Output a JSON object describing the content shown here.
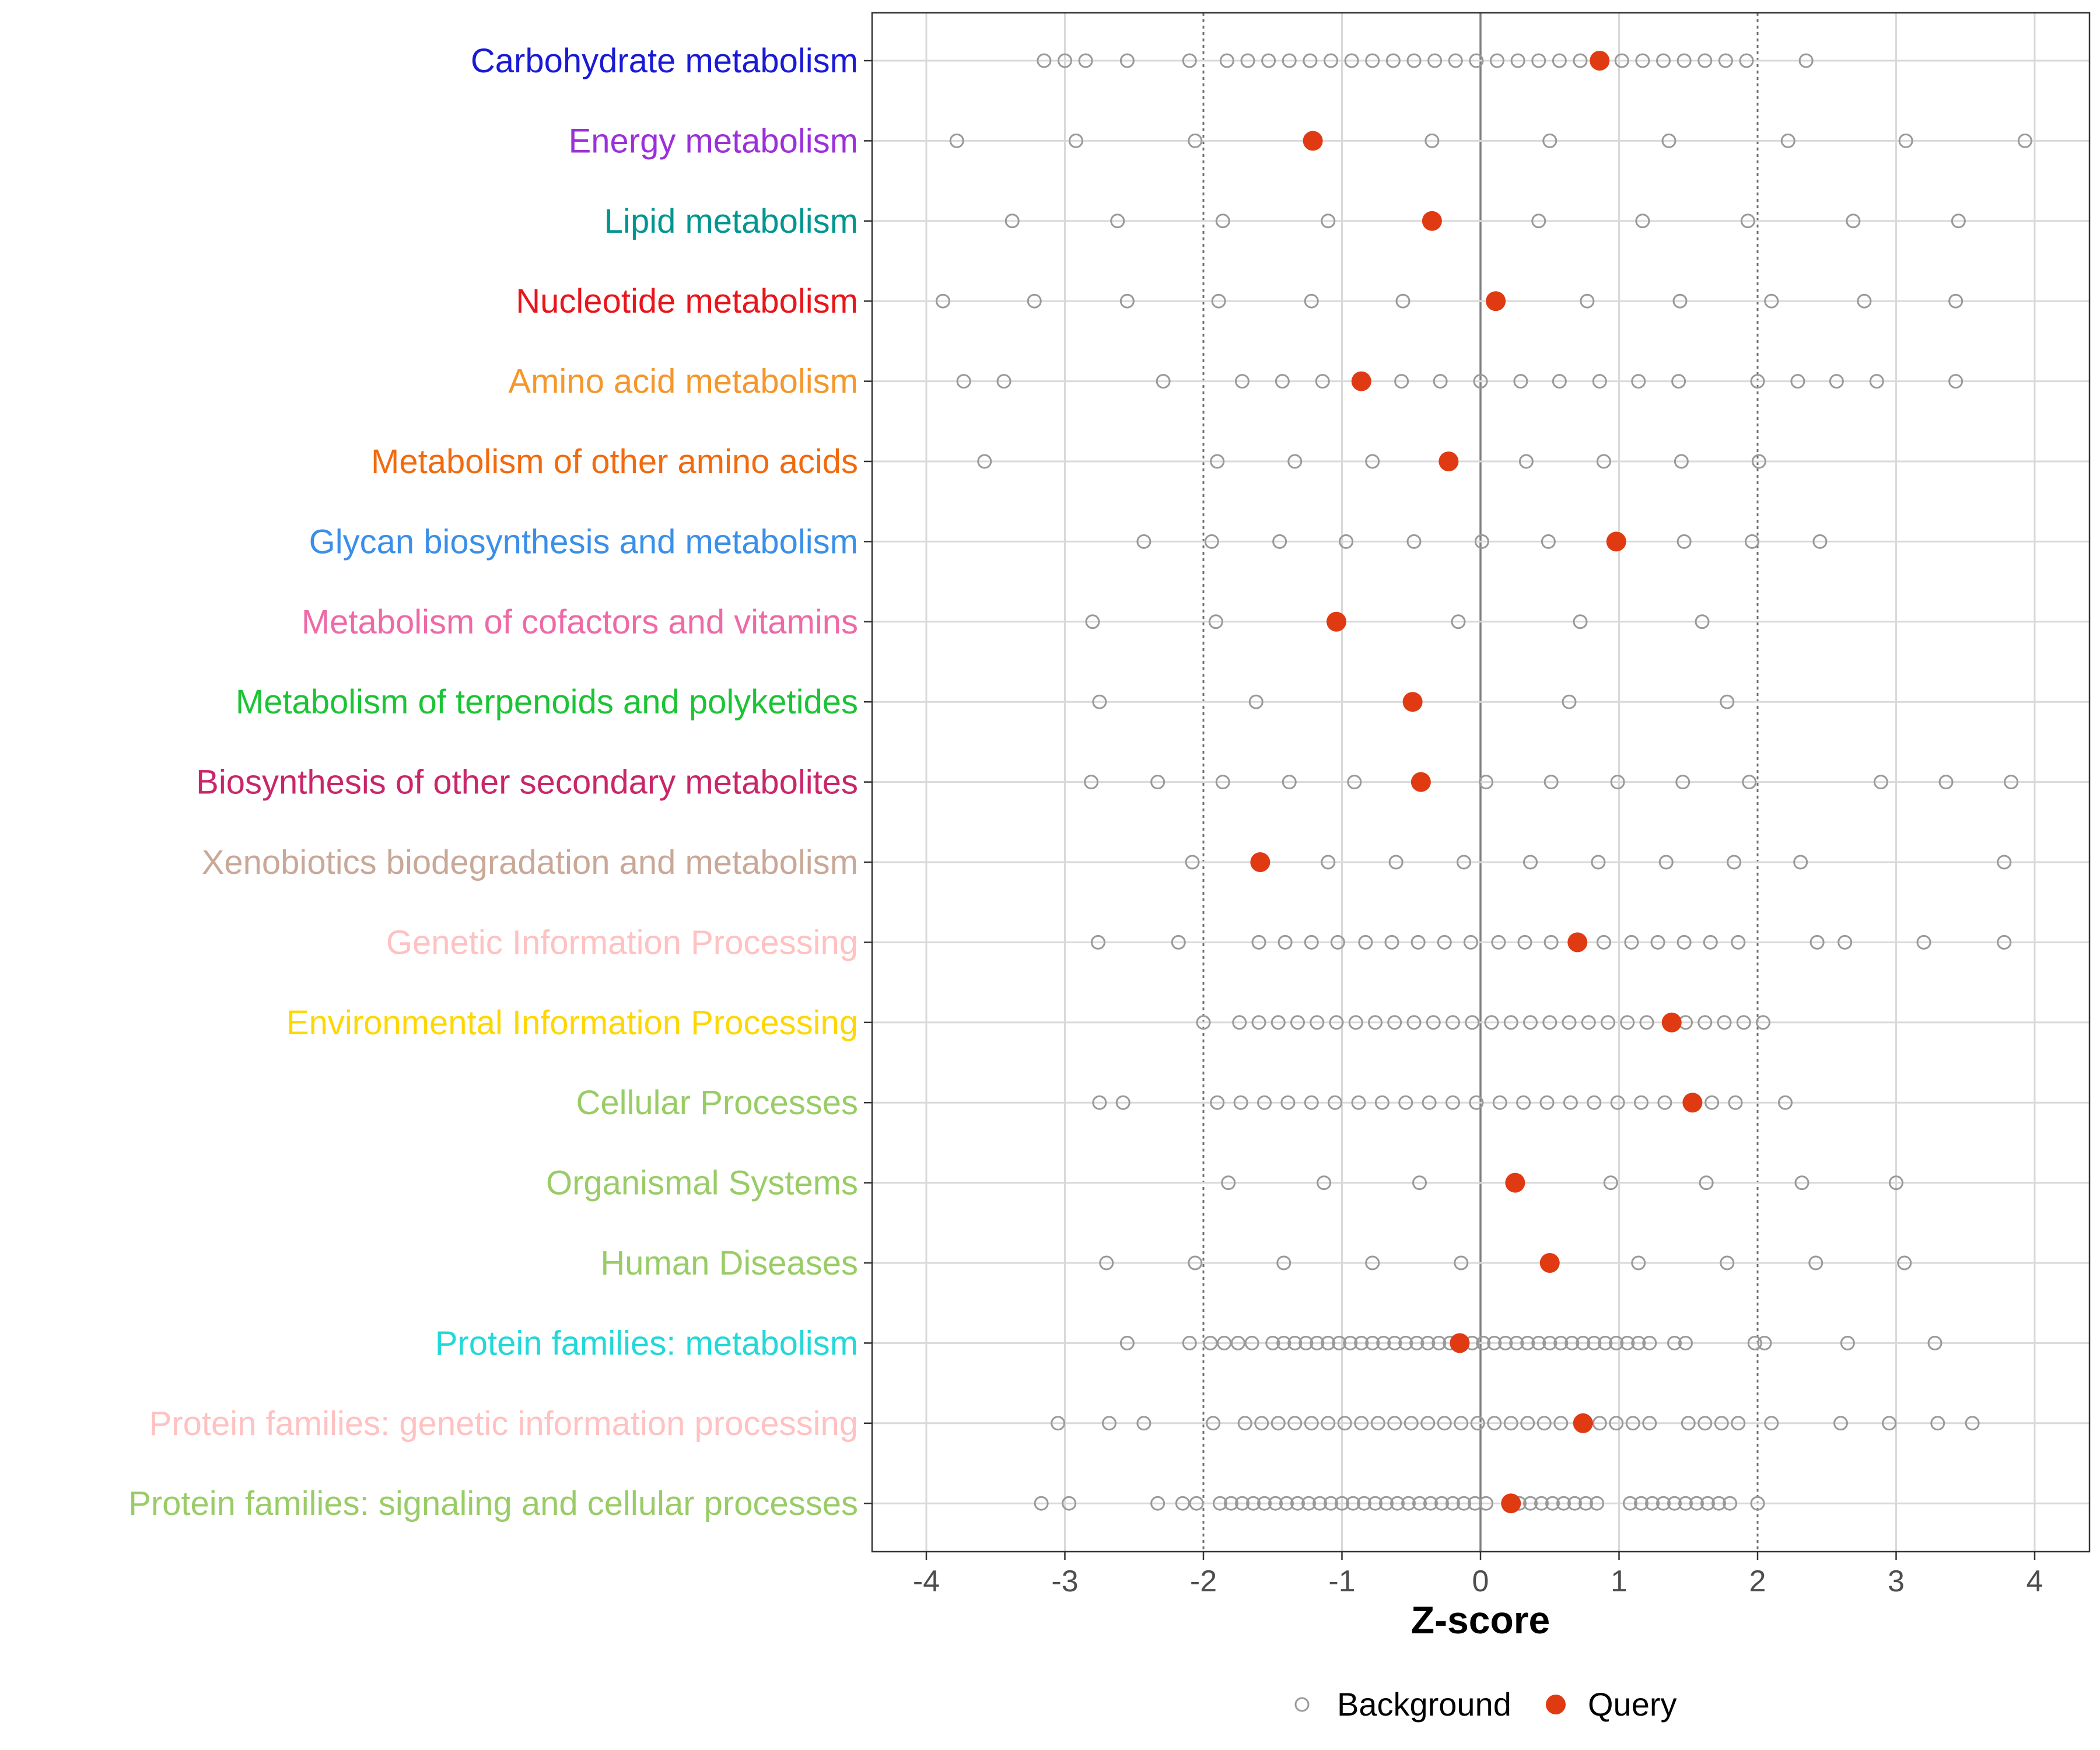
{
  "chart_data": {
    "type": "scatter",
    "xlabel": "Z-score",
    "xlim": [
      -4.4,
      4.4
    ],
    "xticks": [
      -4,
      -3,
      -2,
      -1,
      0,
      1,
      2,
      3,
      4
    ],
    "reference_lines": {
      "solid": [
        0
      ],
      "dotted": [
        -2,
        2
      ]
    },
    "legend": {
      "position": "bottom",
      "items": [
        {
          "name": "Background",
          "style": "open-circle"
        },
        {
          "name": "Query",
          "style": "filled-circle"
        }
      ]
    },
    "colors": {
      "background": "#999999",
      "query": "#E03A12",
      "grid": "#d9d9d9",
      "zero_line": "#808080",
      "dotted_line": "#707070"
    },
    "categories": [
      {
        "name": "Carbohydrate metabolism",
        "color": "#1A1AD6",
        "background": [
          -3.15,
          -3.0,
          -2.85,
          -2.55,
          -2.1,
          -1.83,
          -1.68,
          -1.53,
          -1.38,
          -1.23,
          -1.08,
          -0.93,
          -0.78,
          -0.63,
          -0.48,
          -0.33,
          -0.18,
          -0.03,
          0.12,
          0.27,
          0.42,
          0.57,
          0.72,
          1.02,
          1.17,
          1.32,
          1.47,
          1.62,
          1.77,
          1.92,
          2.35
        ],
        "query": 0.86
      },
      {
        "name": "Energy metabolism",
        "color": "#9B30D9",
        "background": [
          -3.78,
          -2.92,
          -2.06,
          -0.35,
          0.5,
          1.36,
          2.22,
          3.07,
          3.93
        ],
        "query": -1.21
      },
      {
        "name": "Lipid metabolism",
        "color": "#00968F",
        "background": [
          -3.38,
          -2.62,
          -1.86,
          -1.1,
          0.42,
          1.17,
          1.93,
          2.69,
          3.45
        ],
        "query": -0.35
      },
      {
        "name": "Nucleotide metabolism",
        "color": "#E8151B",
        "background": [
          -3.88,
          -3.22,
          -2.55,
          -1.89,
          -1.22,
          -0.56,
          0.77,
          1.44,
          2.1,
          2.77,
          3.43
        ],
        "query": 0.11
      },
      {
        "name": "Amino acid metabolism",
        "color": "#F5972C",
        "background": [
          -3.73,
          -3.44,
          -2.29,
          -1.72,
          -1.43,
          -1.14,
          -0.57,
          -0.29,
          0.0,
          0.29,
          0.57,
          0.86,
          1.14,
          1.43,
          2.0,
          2.29,
          2.57,
          2.86,
          3.43
        ],
        "query": -0.86
      },
      {
        "name": "Metabolism of other amino acids",
        "color": "#F26A0F",
        "background": [
          -3.58,
          -1.9,
          -1.34,
          -0.78,
          0.33,
          0.89,
          1.45,
          2.01
        ],
        "query": -0.23
      },
      {
        "name": "Glycan biosynthesis and metabolism",
        "color": "#3A8FE8",
        "background": [
          -2.43,
          -1.94,
          -1.45,
          -0.97,
          -0.48,
          0.01,
          0.49,
          1.47,
          1.96,
          2.45
        ],
        "query": 0.98
      },
      {
        "name": "Metabolism of cofactors and vitamins",
        "color": "#EE6AA7",
        "background": [
          -2.8,
          -1.91,
          -0.16,
          0.72,
          1.6
        ],
        "query": -1.04
      },
      {
        "name": "Metabolism of terpenoids and polyketides",
        "color": "#1BC435",
        "background": [
          -2.75,
          -1.62,
          0.64,
          1.78
        ],
        "query": -0.49
      },
      {
        "name": "Biosynthesis of other secondary metabolites",
        "color": "#C9266A",
        "background": [
          -2.81,
          -2.33,
          -1.86,
          -1.38,
          -0.91,
          0.04,
          0.51,
          0.99,
          1.46,
          1.94,
          2.89,
          3.36,
          3.83
        ],
        "query": -0.43
      },
      {
        "name": "Xenobiotics biodegradation and metabolism",
        "color": "#C9A898",
        "background": [
          -2.08,
          -1.1,
          -0.61,
          -0.12,
          0.36,
          0.85,
          1.34,
          1.83,
          2.31,
          3.78
        ],
        "query": -1.59
      },
      {
        "name": "Genetic Information Processing",
        "color": "#FFC1C1",
        "background": [
          -2.76,
          -2.18,
          -1.6,
          -1.41,
          -1.22,
          -1.03,
          -0.83,
          -0.64,
          -0.45,
          -0.26,
          -0.07,
          0.13,
          0.32,
          0.51,
          0.89,
          1.09,
          1.28,
          1.47,
          1.66,
          1.86,
          2.43,
          2.63,
          3.2,
          3.78
        ],
        "query": 0.7
      },
      {
        "name": "Environmental Information Processing",
        "color": "#FFD700",
        "background": [
          -2.0,
          -1.74,
          -1.6,
          -1.46,
          -1.32,
          -1.18,
          -1.04,
          -0.9,
          -0.76,
          -0.62,
          -0.48,
          -0.34,
          -0.2,
          -0.06,
          0.08,
          0.22,
          0.36,
          0.5,
          0.64,
          0.78,
          0.92,
          1.06,
          1.2,
          1.48,
          1.62,
          1.76,
          1.9,
          2.04
        ],
        "query": 1.38
      },
      {
        "name": "Cellular Processes",
        "color": "#99CC66",
        "background": [
          -2.75,
          -2.58,
          -1.9,
          -1.73,
          -1.56,
          -1.39,
          -1.22,
          -1.05,
          -0.88,
          -0.71,
          -0.54,
          -0.37,
          -0.2,
          -0.03,
          0.14,
          0.31,
          0.48,
          0.65,
          0.82,
          0.99,
          1.16,
          1.33,
          1.67,
          1.84,
          2.2
        ],
        "query": 1.53
      },
      {
        "name": "Organismal Systems",
        "color": "#99CC66",
        "background": [
          -1.82,
          -1.13,
          -0.44,
          0.94,
          1.63,
          2.32,
          3.0
        ],
        "query": 0.25
      },
      {
        "name": "Human Diseases",
        "color": "#99CC66",
        "background": [
          -2.7,
          -2.06,
          -1.42,
          -0.78,
          -0.14,
          1.14,
          1.78,
          2.42,
          3.06
        ],
        "query": 0.5
      },
      {
        "name": "Protein families: metabolism",
        "color": "#22D8D8",
        "background": [
          -2.55,
          -2.1,
          -1.95,
          -1.85,
          -1.75,
          -1.65,
          -1.5,
          -1.42,
          -1.34,
          -1.26,
          -1.18,
          -1.1,
          -1.02,
          -0.94,
          -0.86,
          -0.78,
          -0.7,
          -0.62,
          -0.54,
          -0.46,
          -0.38,
          -0.3,
          -0.22,
          -0.06,
          0.02,
          0.1,
          0.18,
          0.26,
          0.34,
          0.42,
          0.5,
          0.58,
          0.66,
          0.74,
          0.82,
          0.9,
          0.98,
          1.06,
          1.14,
          1.22,
          1.4,
          1.48,
          1.98,
          2.05,
          2.65,
          3.28
        ],
        "query": -0.15
      },
      {
        "name": "Protein families: genetic information processing",
        "color": "#FFC1C1",
        "background": [
          -3.05,
          -2.68,
          -2.43,
          -1.93,
          -1.7,
          -1.58,
          -1.46,
          -1.34,
          -1.22,
          -1.1,
          -0.98,
          -0.86,
          -0.74,
          -0.62,
          -0.5,
          -0.38,
          -0.26,
          -0.14,
          -0.02,
          0.1,
          0.22,
          0.34,
          0.46,
          0.58,
          0.86,
          0.98,
          1.1,
          1.22,
          1.5,
          1.62,
          1.74,
          1.86,
          2.1,
          2.6,
          2.95,
          3.3,
          3.55
        ],
        "query": 0.74
      },
      {
        "name": "Protein families: signaling and cellular processes",
        "color": "#99CC66",
        "background": [
          -3.17,
          -2.97,
          -2.33,
          -2.15,
          -2.05,
          -1.88,
          -1.8,
          -1.72,
          -1.64,
          -1.56,
          -1.48,
          -1.4,
          -1.32,
          -1.24,
          -1.16,
          -1.08,
          -1.0,
          -0.92,
          -0.84,
          -0.76,
          -0.68,
          -0.6,
          -0.52,
          -0.44,
          -0.36,
          -0.28,
          -0.2,
          -0.12,
          -0.04,
          0.04,
          0.28,
          0.36,
          0.44,
          0.52,
          0.6,
          0.68,
          0.76,
          0.84,
          1.08,
          1.16,
          1.24,
          1.32,
          1.4,
          1.48,
          1.56,
          1.64,
          1.72,
          1.8,
          2.0
        ],
        "query": 0.22
      }
    ]
  }
}
